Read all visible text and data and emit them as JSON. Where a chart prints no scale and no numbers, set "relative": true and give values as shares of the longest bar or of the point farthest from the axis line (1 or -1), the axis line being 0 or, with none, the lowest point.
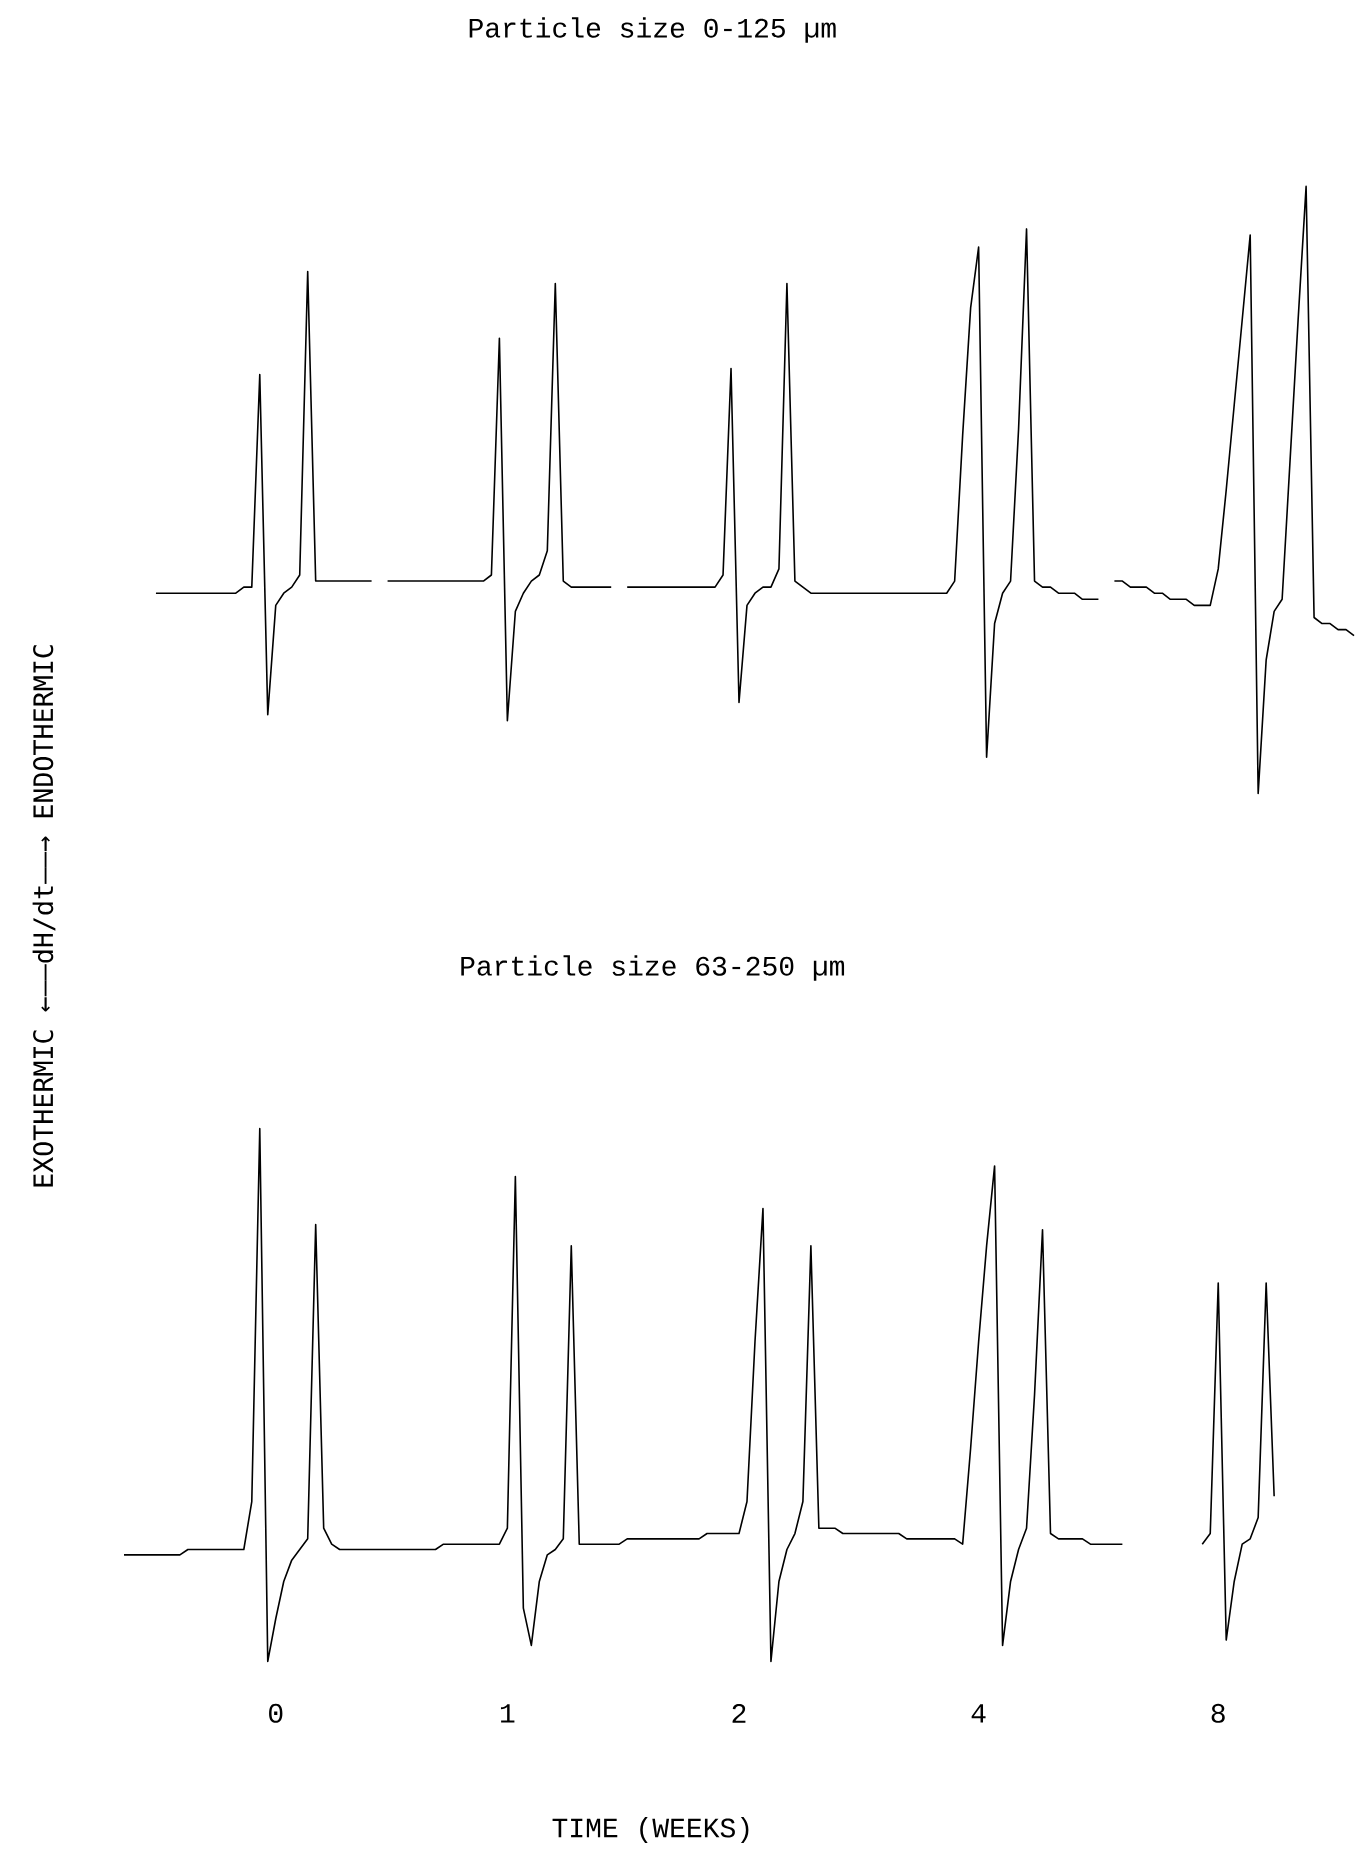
{
  "chart_data": [
    {
      "type": "line",
      "title": "Particle size 0-125 µm",
      "ylabel": "EXOTHERMIC ←——dH/dt——→ ENDOTHERMIC",
      "relative": true,
      "tick_labels": false,
      "line_style": "solid",
      "categories": [
        null,
        null,
        null,
        null,
        null,
        null,
        null,
        null,
        null,
        null,
        null,
        null,
        null,
        null,
        null,
        null,
        null,
        null,
        null,
        "0",
        null,
        null,
        null,
        null,
        null,
        null,
        null,
        null,
        null,
        null,
        null,
        null,
        null,
        null,
        null,
        null,
        null,
        null,
        null,
        null,
        null,
        null,
        null,
        null,
        null,
        null,
        null,
        null,
        "1",
        null,
        null,
        null,
        null,
        null,
        null,
        null,
        null,
        null,
        null,
        null,
        null,
        null,
        null,
        null,
        null,
        null,
        null,
        null,
        null,
        null,
        null,
        null,
        null,
        null,
        null,
        null,
        null,
        "2",
        null,
        null,
        null,
        null,
        null,
        null,
        null,
        null,
        null,
        null,
        null,
        null,
        null,
        null,
        null,
        null,
        null,
        null,
        null,
        null,
        null,
        null,
        null,
        null,
        null,
        null,
        null,
        null,
        null,
        "4",
        null,
        null,
        null,
        null,
        null,
        null,
        null,
        null,
        null,
        null,
        null,
        null,
        null,
        null,
        null,
        null,
        null,
        null,
        null,
        null,
        null,
        null,
        null,
        null,
        null,
        null,
        null,
        null,
        null,
        "8",
        null,
        null,
        null,
        null,
        null,
        null,
        null,
        null,
        null,
        null,
        null,
        null,
        null,
        null,
        null,
        null,
        null
      ],
      "series": [
        {
          "color": "#000000",
          "values": [
            null,
            null,
            null,
            null,
            0.33,
            0.33,
            0.33,
            0.33,
            0.33,
            0.33,
            0.33,
            0.33,
            0.33,
            0.33,
            0.33,
            0.34,
            0.34,
            0.69,
            0.13,
            0.31,
            0.33,
            0.34,
            0.36,
            0.86,
            0.35,
            0.35,
            0.35,
            0.35,
            0.35,
            0.35,
            0.35,
            0.35,
            null,
            0.35,
            0.35,
            0.35,
            0.35,
            0.35,
            0.35,
            0.35,
            0.35,
            0.35,
            0.35,
            0.35,
            0.35,
            0.35,
            0.36,
            0.75,
            0.12,
            0.3,
            0.33,
            0.35,
            0.36,
            0.4,
            0.84,
            0.35,
            0.34,
            0.34,
            0.34,
            0.34,
            0.34,
            0.34,
            null,
            0.34,
            0.34,
            0.34,
            0.34,
            0.34,
            0.34,
            0.34,
            0.34,
            0.34,
            0.34,
            0.34,
            0.34,
            0.36,
            0.7,
            0.15,
            0.31,
            0.33,
            0.34,
            0.34,
            0.37,
            0.84,
            0.35,
            0.34,
            0.33,
            0.33,
            0.33,
            0.33,
            0.33,
            0.33,
            0.33,
            0.33,
            0.33,
            0.33,
            0.33,
            0.33,
            0.33,
            0.33,
            0.33,
            0.33,
            0.33,
            0.33,
            0.35,
            0.59,
            0.8,
            0.9,
            0.06,
            0.28,
            0.33,
            0.35,
            0.6,
            0.93,
            0.35,
            0.34,
            0.34,
            0.33,
            0.33,
            0.33,
            0.32,
            0.32,
            0.32,
            null,
            0.35,
            0.35,
            0.34,
            0.34,
            0.34,
            0.33,
            0.33,
            0.32,
            0.32,
            0.32,
            0.31,
            0.31,
            0.31,
            0.37,
            0.5,
            0.64,
            0.78,
            0.92,
            0,
            0.22,
            0.3,
            0.32,
            0.55,
            0.78,
            1,
            0.29,
            0.28,
            0.28,
            0.27,
            0.27,
            0.26
          ]
        }
      ]
    },
    {
      "type": "line",
      "title": "Particle size 63-250 µm",
      "xlabel": "TIME (WEEKS)",
      "relative": true,
      "tick_labels": "x",
      "line_style": "solid",
      "categories": [
        null,
        null,
        null,
        null,
        null,
        null,
        null,
        null,
        null,
        null,
        null,
        null,
        null,
        null,
        null,
        null,
        null,
        null,
        null,
        "0",
        null,
        null,
        null,
        null,
        null,
        null,
        null,
        null,
        null,
        null,
        null,
        null,
        null,
        null,
        null,
        null,
        null,
        null,
        null,
        null,
        null,
        null,
        null,
        null,
        null,
        null,
        null,
        null,
        "1",
        null,
        null,
        null,
        null,
        null,
        null,
        null,
        null,
        null,
        null,
        null,
        null,
        null,
        null,
        null,
        null,
        null,
        null,
        null,
        null,
        null,
        null,
        null,
        null,
        null,
        null,
        null,
        null,
        "2",
        null,
        null,
        null,
        null,
        null,
        null,
        null,
        null,
        null,
        null,
        null,
        null,
        null,
        null,
        null,
        null,
        null,
        null,
        null,
        null,
        null,
        null,
        null,
        null,
        null,
        null,
        null,
        null,
        null,
        "4",
        null,
        null,
        null,
        null,
        null,
        null,
        null,
        null,
        null,
        null,
        null,
        null,
        null,
        null,
        null,
        null,
        null,
        null,
        null,
        null,
        null,
        null,
        null,
        null,
        null,
        null,
        null,
        null,
        null,
        "8",
        null,
        null,
        null,
        null,
        null,
        null,
        null,
        null,
        null,
        null,
        null,
        null,
        null,
        null,
        null,
        null,
        null
      ],
      "series": [
        {
          "color": "#000000",
          "values": [
            0.2,
            0.2,
            0.2,
            0.2,
            0.2,
            0.2,
            0.2,
            0.2,
            0.21,
            0.21,
            0.21,
            0.21,
            0.21,
            0.21,
            0.21,
            0.21,
            0.3,
            1,
            0,
            0.08,
            0.15,
            0.19,
            0.21,
            0.23,
            0.82,
            0.25,
            0.22,
            0.21,
            0.21,
            0.21,
            0.21,
            0.21,
            0.21,
            0.21,
            0.21,
            0.21,
            0.21,
            0.21,
            0.21,
            0.21,
            0.22,
            0.22,
            0.22,
            0.22,
            0.22,
            0.22,
            0.22,
            0.22,
            0.25,
            0.91,
            0.1,
            0.03,
            0.15,
            0.2,
            0.21,
            0.23,
            0.78,
            0.22,
            0.22,
            0.22,
            0.22,
            0.22,
            0.22,
            0.23,
            0.23,
            0.23,
            0.23,
            0.23,
            0.23,
            0.23,
            0.23,
            0.23,
            0.23,
            0.24,
            0.24,
            0.24,
            0.24,
            0.24,
            0.3,
            0.6,
            0.85,
            0,
            0.15,
            0.21,
            0.24,
            0.3,
            0.78,
            0.25,
            0.25,
            0.25,
            0.24,
            0.24,
            0.24,
            0.24,
            0.24,
            0.24,
            0.24,
            0.24,
            0.23,
            0.23,
            0.23,
            0.23,
            0.23,
            0.23,
            0.23,
            0.22,
            0.4,
            0.6,
            0.78,
            0.93,
            0.03,
            0.15,
            0.21,
            0.25,
            0.5,
            0.81,
            0.24,
            0.23,
            0.23,
            0.23,
            0.23,
            0.22,
            0.22,
            0.22,
            0.22,
            0.22,
            null,
            null,
            null,
            null,
            null,
            null,
            null,
            null,
            null,
            0.22,
            0.24,
            0.71,
            0.04,
            0.15,
            0.22,
            0.23,
            0.27,
            0.71,
            0.31,
            null,
            null,
            null,
            null,
            null,
            null,
            null,
            null,
            null,
            null
          ]
        }
      ]
    }
  ]
}
